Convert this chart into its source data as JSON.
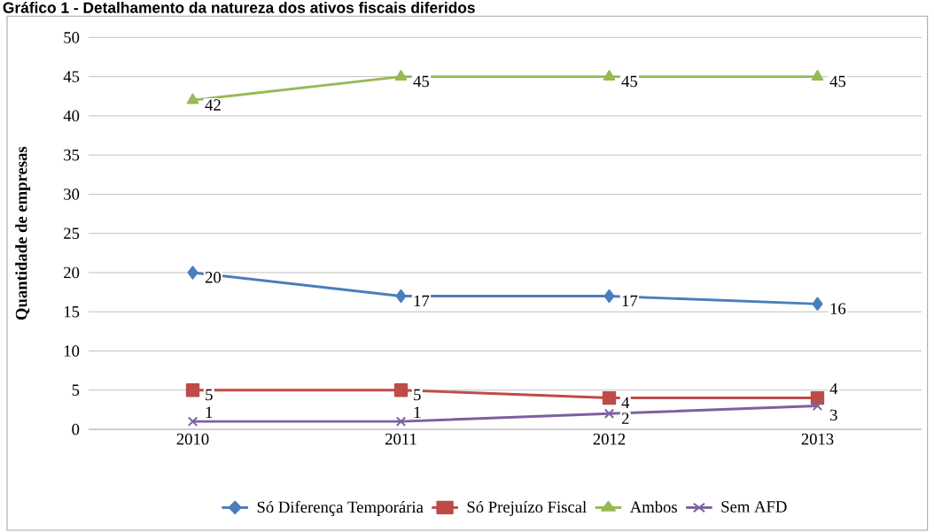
{
  "chart_data": {
    "type": "line",
    "title": "Gráfico 1 - Detalhamento da natureza dos ativos fiscais diferidos",
    "ylabel": "Quantidade de empresas",
    "categories": [
      "2010",
      "2011",
      "2012",
      "2013"
    ],
    "ylim": [
      0,
      50
    ],
    "yticks": [
      0,
      5,
      10,
      15,
      20,
      25,
      30,
      35,
      40,
      45,
      50
    ],
    "grid": "y",
    "legend": "bottom",
    "data_labels": true,
    "series": [
      {
        "name": "Só Diferença Temporária",
        "color": "#4a7ebb",
        "marker": "diamond",
        "values": [
          20,
          17,
          17,
          16
        ]
      },
      {
        "name": "Só Prejuízo Fiscal",
        "color": "#be4b48",
        "marker": "square",
        "values": [
          5,
          5,
          4,
          4
        ]
      },
      {
        "name": "Ambos",
        "color": "#98b954",
        "marker": "triangle",
        "values": [
          42,
          45,
          45,
          45
        ]
      },
      {
        "name": "Sem AFD",
        "color": "#7d60a0",
        "marker": "cross",
        "values": [
          1,
          1,
          2,
          3
        ]
      }
    ]
  }
}
